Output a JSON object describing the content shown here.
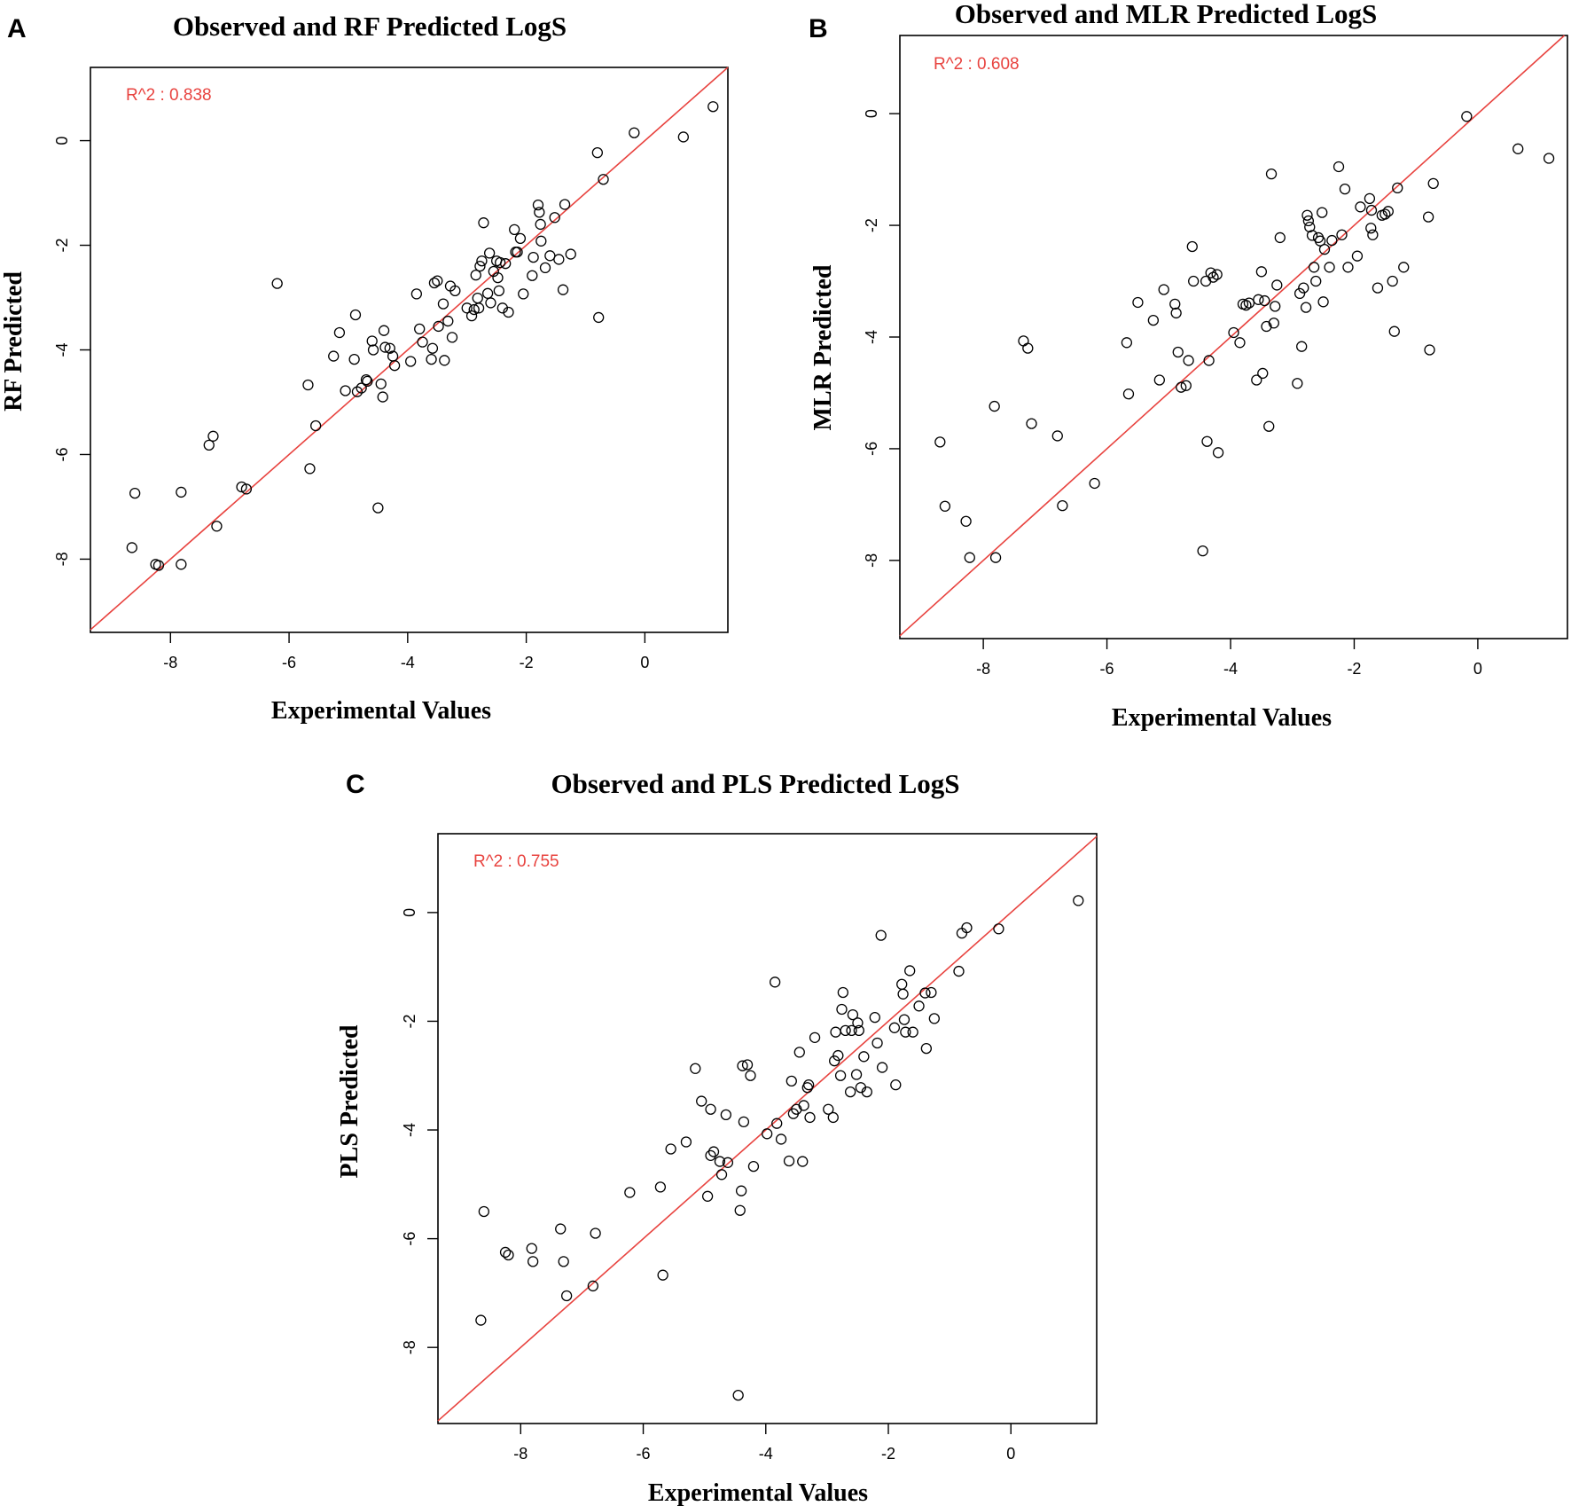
{
  "colors": {
    "fit_line": "#e8433f",
    "r2_text": "#e8433f",
    "points": "#000000"
  },
  "chart_data": [
    {
      "type": "scatter",
      "panel": "A",
      "title": "Observed and RF Predicted LogS",
      "xlabel": "Experimental Values",
      "ylabel": "RF Predicted",
      "r2_text": "R^2 : 0.838",
      "xlim": [
        -9.35,
        1.4
      ],
      "ylim": [
        -9.4,
        1.4
      ],
      "xticks": [
        -8,
        -6,
        -4,
        -2,
        0
      ],
      "yticks": [
        -8,
        -6,
        -4,
        -2,
        0
      ],
      "fit_line": "y = x",
      "points": [
        [
          -8.65,
          -7.78
        ],
        [
          -8.6,
          -6.74
        ],
        [
          -8.25,
          -8.1
        ],
        [
          -8.2,
          -8.12
        ],
        [
          -7.82,
          -6.72
        ],
        [
          -7.82,
          -8.1
        ],
        [
          -7.35,
          -5.82
        ],
        [
          -7.28,
          -5.65
        ],
        [
          -7.22,
          -7.37
        ],
        [
          -6.8,
          -6.62
        ],
        [
          -6.72,
          -6.66
        ],
        [
          -6.2,
          -2.73
        ],
        [
          -5.68,
          -4.67
        ],
        [
          -5.65,
          -6.27
        ],
        [
          -5.55,
          -5.45
        ],
        [
          -5.25,
          -4.12
        ],
        [
          -5.15,
          -3.67
        ],
        [
          -5.05,
          -4.78
        ],
        [
          -4.9,
          -4.18
        ],
        [
          -4.88,
          -3.33
        ],
        [
          -4.85,
          -4.8
        ],
        [
          -4.78,
          -4.73
        ],
        [
          -4.7,
          -4.57
        ],
        [
          -4.68,
          -4.6
        ],
        [
          -4.6,
          -3.83
        ],
        [
          -4.58,
          -4.0
        ],
        [
          -4.5,
          -7.02
        ],
        [
          -4.45,
          -4.65
        ],
        [
          -4.42,
          -4.9
        ],
        [
          -4.4,
          -3.63
        ],
        [
          -4.38,
          -3.95
        ],
        [
          -4.3,
          -3.97
        ],
        [
          -4.25,
          -4.12
        ],
        [
          -4.22,
          -4.3
        ],
        [
          -3.95,
          -4.22
        ],
        [
          -3.85,
          -2.93
        ],
        [
          -3.8,
          -3.6
        ],
        [
          -3.75,
          -3.85
        ],
        [
          -3.6,
          -4.18
        ],
        [
          -3.58,
          -3.97
        ],
        [
          -3.55,
          -2.72
        ],
        [
          -3.5,
          -2.68
        ],
        [
          -3.48,
          -3.55
        ],
        [
          -3.4,
          -3.12
        ],
        [
          -3.38,
          -4.2
        ],
        [
          -3.32,
          -3.45
        ],
        [
          -3.28,
          -2.78
        ],
        [
          -3.25,
          -3.76
        ],
        [
          -3.2,
          -2.87
        ],
        [
          -3.0,
          -3.2
        ],
        [
          -2.92,
          -3.35
        ],
        [
          -2.88,
          -3.23
        ],
        [
          -2.85,
          -2.57
        ],
        [
          -2.82,
          -3.01
        ],
        [
          -2.8,
          -3.2
        ],
        [
          -2.78,
          -2.4
        ],
        [
          -2.75,
          -2.3
        ],
        [
          -2.72,
          -1.57
        ],
        [
          -2.65,
          -2.92
        ],
        [
          -2.62,
          -2.15
        ],
        [
          -2.6,
          -3.1
        ],
        [
          -2.55,
          -2.5
        ],
        [
          -2.5,
          -2.3
        ],
        [
          -2.48,
          -2.62
        ],
        [
          -2.46,
          -2.87
        ],
        [
          -2.44,
          -2.33
        ],
        [
          -2.4,
          -3.2
        ],
        [
          -2.35,
          -2.35
        ],
        [
          -2.3,
          -3.28
        ],
        [
          -2.2,
          -1.7
        ],
        [
          -2.18,
          -2.13
        ],
        [
          -2.15,
          -2.13
        ],
        [
          -2.1,
          -1.87
        ],
        [
          -2.05,
          -2.93
        ],
        [
          -1.9,
          -2.58
        ],
        [
          -1.88,
          -2.23
        ],
        [
          -1.8,
          -1.23
        ],
        [
          -1.78,
          -1.37
        ],
        [
          -1.76,
          -1.6
        ],
        [
          -1.75,
          -1.92
        ],
        [
          -1.68,
          -2.43
        ],
        [
          -1.6,
          -2.2
        ],
        [
          -1.52,
          -1.47
        ],
        [
          -1.45,
          -2.27
        ],
        [
          -1.38,
          -2.85
        ],
        [
          -1.35,
          -1.22
        ],
        [
          -1.25,
          -2.17
        ],
        [
          -0.8,
          -0.23
        ],
        [
          -0.78,
          -3.38
        ],
        [
          -0.7,
          -0.74
        ],
        [
          -0.18,
          0.15
        ],
        [
          0.65,
          0.07
        ],
        [
          1.15,
          0.65
        ]
      ]
    },
    {
      "type": "scatter",
      "panel": "B",
      "title": "Observed and MLR Predicted LogS",
      "xlabel": "Experimental Values",
      "ylabel": "MLR Predicted",
      "r2_text": "R^2 : 0.608",
      "xlim": [
        -9.35,
        1.45
      ],
      "ylim": [
        -9.4,
        1.4
      ],
      "xticks": [
        -8,
        -6,
        -4,
        -2,
        0
      ],
      "yticks": [
        -8,
        -6,
        -4,
        -2,
        0
      ],
      "fit_line": "y = x",
      "points": [
        [
          -8.7,
          -5.88
        ],
        [
          -8.62,
          -7.03
        ],
        [
          -8.28,
          -7.3
        ],
        [
          -8.22,
          -7.95
        ],
        [
          -7.82,
          -5.24
        ],
        [
          -7.8,
          -7.95
        ],
        [
          -7.35,
          -4.07
        ],
        [
          -7.28,
          -4.2
        ],
        [
          -7.22,
          -5.55
        ],
        [
          -6.8,
          -5.77
        ],
        [
          -6.72,
          -7.02
        ],
        [
          -6.2,
          -6.62
        ],
        [
          -5.68,
          -4.1
        ],
        [
          -5.65,
          -5.02
        ],
        [
          -5.5,
          -3.38
        ],
        [
          -5.25,
          -3.7
        ],
        [
          -5.15,
          -4.77
        ],
        [
          -5.08,
          -3.15
        ],
        [
          -4.9,
          -3.41
        ],
        [
          -4.88,
          -3.57
        ],
        [
          -4.85,
          -4.27
        ],
        [
          -4.8,
          -4.9
        ],
        [
          -4.72,
          -4.87
        ],
        [
          -4.68,
          -4.42
        ],
        [
          -4.62,
          -2.38
        ],
        [
          -4.6,
          -3.0
        ],
        [
          -4.4,
          -3.0
        ],
        [
          -4.38,
          -5.87
        ],
        [
          -4.35,
          -4.42
        ],
        [
          -4.32,
          -2.85
        ],
        [
          -4.28,
          -2.93
        ],
        [
          -4.22,
          -2.88
        ],
        [
          -4.2,
          -6.07
        ],
        [
          -4.45,
          -7.83
        ],
        [
          -3.95,
          -3.92
        ],
        [
          -3.85,
          -4.1
        ],
        [
          -3.8,
          -3.41
        ],
        [
          -3.75,
          -3.43
        ],
        [
          -3.7,
          -3.39
        ],
        [
          -3.58,
          -4.77
        ],
        [
          -3.55,
          -3.33
        ],
        [
          -3.5,
          -2.83
        ],
        [
          -3.48,
          -4.65
        ],
        [
          -3.45,
          -3.35
        ],
        [
          -3.42,
          -3.81
        ],
        [
          -3.38,
          -5.6
        ],
        [
          -3.34,
          -1.08
        ],
        [
          -3.3,
          -3.75
        ],
        [
          -3.28,
          -3.45
        ],
        [
          -3.25,
          -3.07
        ],
        [
          -3.2,
          -2.22
        ],
        [
          -2.92,
          -4.83
        ],
        [
          -2.88,
          -3.22
        ],
        [
          -2.85,
          -4.17
        ],
        [
          -2.82,
          -3.12
        ],
        [
          -2.78,
          -3.47
        ],
        [
          -2.76,
          -1.82
        ],
        [
          -2.74,
          -1.92
        ],
        [
          -2.72,
          -2.03
        ],
        [
          -2.68,
          -2.18
        ],
        [
          -2.65,
          -2.75
        ],
        [
          -2.62,
          -3.0
        ],
        [
          -2.58,
          -2.22
        ],
        [
          -2.55,
          -2.28
        ],
        [
          -2.52,
          -1.77
        ],
        [
          -2.5,
          -3.37
        ],
        [
          -2.48,
          -2.43
        ],
        [
          -2.4,
          -2.75
        ],
        [
          -2.36,
          -2.27
        ],
        [
          -2.25,
          -0.95
        ],
        [
          -2.2,
          -2.17
        ],
        [
          -2.15,
          -1.35
        ],
        [
          -2.1,
          -2.75
        ],
        [
          -1.95,
          -2.55
        ],
        [
          -1.9,
          -1.67
        ],
        [
          -1.75,
          -1.52
        ],
        [
          -1.73,
          -2.05
        ],
        [
          -1.72,
          -1.73
        ],
        [
          -1.7,
          -2.17
        ],
        [
          -1.62,
          -3.12
        ],
        [
          -1.55,
          -1.82
        ],
        [
          -1.5,
          -1.8
        ],
        [
          -1.45,
          -1.75
        ],
        [
          -1.38,
          -3.0
        ],
        [
          -1.35,
          -3.9
        ],
        [
          -1.3,
          -1.33
        ],
        [
          -1.2,
          -2.75
        ],
        [
          -0.8,
          -1.85
        ],
        [
          -0.78,
          -4.23
        ],
        [
          -0.72,
          -1.25
        ],
        [
          -0.18,
          -0.05
        ],
        [
          0.65,
          -0.63
        ],
        [
          1.15,
          -0.8
        ]
      ]
    },
    {
      "type": "scatter",
      "panel": "C",
      "title": "Observed and PLS Predicted LogS",
      "xlabel": "Experimental Values",
      "ylabel": "PLS Predicted",
      "r2_text": "R^2 : 0.755",
      "xlim": [
        -9.35,
        1.4
      ],
      "ylim": [
        -9.4,
        1.45
      ],
      "xticks": [
        -8,
        -6,
        -4,
        -2,
        0
      ],
      "yticks": [
        -8,
        -6,
        -4,
        -2,
        0
      ],
      "fit_line": "y = x",
      "points": [
        [
          -8.65,
          -7.5
        ],
        [
          -8.6,
          -5.5
        ],
        [
          -8.25,
          -6.25
        ],
        [
          -8.2,
          -6.3
        ],
        [
          -7.82,
          -6.18
        ],
        [
          -7.8,
          -6.42
        ],
        [
          -7.35,
          -5.82
        ],
        [
          -7.3,
          -6.42
        ],
        [
          -7.25,
          -7.05
        ],
        [
          -6.82,
          -6.87
        ],
        [
          -6.78,
          -5.9
        ],
        [
          -6.22,
          -5.15
        ],
        [
          -5.72,
          -5.05
        ],
        [
          -5.68,
          -6.67
        ],
        [
          -5.55,
          -4.35
        ],
        [
          -5.3,
          -4.22
        ],
        [
          -5.15,
          -2.87
        ],
        [
          -5.05,
          -3.47
        ],
        [
          -4.95,
          -5.22
        ],
        [
          -4.9,
          -4.47
        ],
        [
          -4.85,
          -4.4
        ],
        [
          -4.9,
          -3.62
        ],
        [
          -4.75,
          -4.58
        ],
        [
          -4.72,
          -4.82
        ],
        [
          -4.65,
          -3.72
        ],
        [
          -4.62,
          -4.6
        ],
        [
          -4.45,
          -8.88
        ],
        [
          -4.42,
          -5.48
        ],
        [
          -4.4,
          -5.12
        ],
        [
          -4.38,
          -2.82
        ],
        [
          -4.36,
          -3.85
        ],
        [
          -4.3,
          -2.8
        ],
        [
          -4.25,
          -3.0
        ],
        [
          -4.2,
          -4.67
        ],
        [
          -3.98,
          -4.07
        ],
        [
          -3.85,
          -1.28
        ],
        [
          -3.82,
          -3.88
        ],
        [
          -3.75,
          -4.17
        ],
        [
          -3.62,
          -4.57
        ],
        [
          -3.58,
          -3.1
        ],
        [
          -3.55,
          -3.7
        ],
        [
          -3.5,
          -3.62
        ],
        [
          -3.45,
          -2.57
        ],
        [
          -3.4,
          -4.58
        ],
        [
          -3.38,
          -3.55
        ],
        [
          -3.32,
          -3.22
        ],
        [
          -3.3,
          -3.17
        ],
        [
          -3.28,
          -3.77
        ],
        [
          -3.2,
          -2.3
        ],
        [
          -2.98,
          -3.62
        ],
        [
          -2.9,
          -3.77
        ],
        [
          -2.88,
          -2.73
        ],
        [
          -2.86,
          -2.2
        ],
        [
          -2.82,
          -2.63
        ],
        [
          -2.78,
          -3.0
        ],
        [
          -2.76,
          -1.78
        ],
        [
          -2.74,
          -1.47
        ],
        [
          -2.7,
          -2.17
        ],
        [
          -2.62,
          -3.3
        ],
        [
          -2.6,
          -2.17
        ],
        [
          -2.58,
          -1.88
        ],
        [
          -2.52,
          -2.98
        ],
        [
          -2.5,
          -2.03
        ],
        [
          -2.48,
          -2.17
        ],
        [
          -2.45,
          -3.22
        ],
        [
          -2.4,
          -2.65
        ],
        [
          -2.35,
          -3.3
        ],
        [
          -2.22,
          -1.93
        ],
        [
          -2.18,
          -2.4
        ],
        [
          -2.12,
          -0.42
        ],
        [
          -2.1,
          -2.85
        ],
        [
          -1.9,
          -2.12
        ],
        [
          -1.88,
          -3.17
        ],
        [
          -1.78,
          -1.32
        ],
        [
          -1.76,
          -1.5
        ],
        [
          -1.74,
          -1.97
        ],
        [
          -1.72,
          -2.2
        ],
        [
          -1.65,
          -1.07
        ],
        [
          -1.6,
          -2.2
        ],
        [
          -1.5,
          -1.72
        ],
        [
          -1.4,
          -1.48
        ],
        [
          -1.38,
          -2.5
        ],
        [
          -1.3,
          -1.47
        ],
        [
          -1.25,
          -1.95
        ],
        [
          -0.85,
          -1.08
        ],
        [
          -0.8,
          -0.38
        ],
        [
          -0.72,
          -0.28
        ],
        [
          -0.2,
          -0.3
        ],
        [
          1.1,
          0.22
        ]
      ]
    }
  ]
}
